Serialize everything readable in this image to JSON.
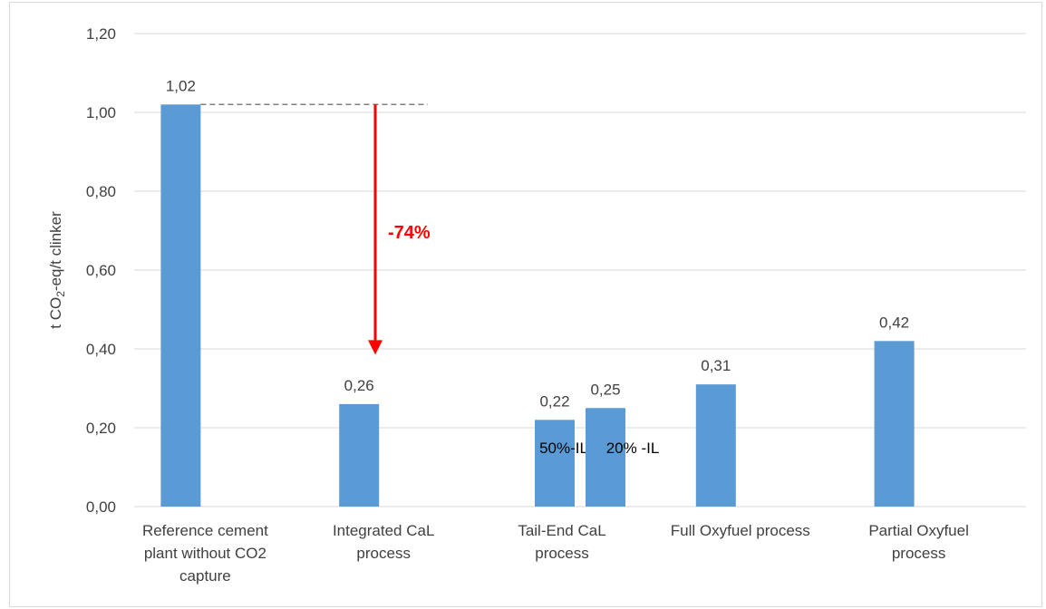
{
  "chart_data": {
    "type": "bar",
    "categories": [
      [
        "Reference cement",
        "plant without CO2",
        "capture"
      ],
      [
        "Integrated CaL",
        "process"
      ],
      [
        "Tail-End CaL",
        "process"
      ],
      [
        "Full Oxyfuel process"
      ],
      [
        "Partial Oxyfuel",
        "process"
      ]
    ],
    "bars": [
      {
        "category_index": 0,
        "value": 1.02,
        "label": "1,02"
      },
      {
        "category_index": 1,
        "value": 0.26,
        "label": "0,26"
      },
      {
        "category_index": 2,
        "value": 0.22,
        "label": "0,22",
        "sub_label": "50%-IL"
      },
      {
        "category_index": 2,
        "value": 0.25,
        "label": "0,25",
        "sub_label": "20% -IL"
      },
      {
        "category_index": 3,
        "value": 0.31,
        "label": "0,31"
      },
      {
        "category_index": 4,
        "value": 0.42,
        "label": "0,42"
      }
    ],
    "ylabel": {
      "prefix": "t CO",
      "subscript": "2",
      "suffix": "-eq/t clinker"
    },
    "ylim": [
      0,
      1.2
    ],
    "yticks": [
      "0,00",
      "0,20",
      "0,40",
      "0,60",
      "0,80",
      "1,00",
      "1,20"
    ],
    "grid": true,
    "annotation": {
      "text": "-74%",
      "from_value": 1.02,
      "to_value": 0.39
    },
    "colors": {
      "bar": "#5b9bd5",
      "grid": "#d9d9d9",
      "arrow": "#ff0000",
      "annotation_text": "#ff0000",
      "dashed_line": "#7f7f7f"
    }
  }
}
